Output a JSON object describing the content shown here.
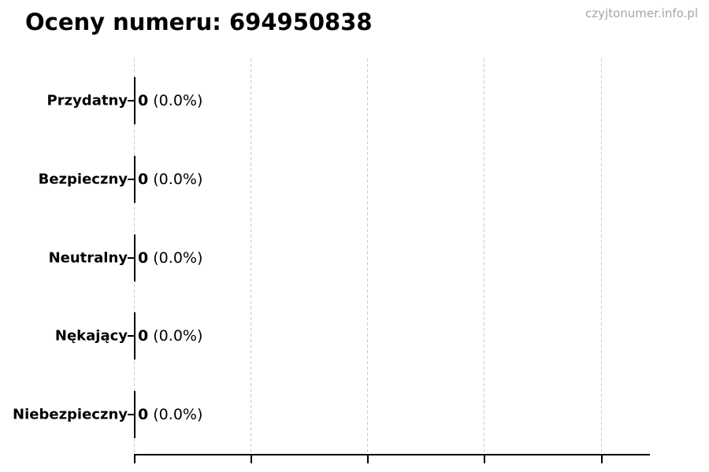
{
  "chart": {
    "title": "Oceny numeru: 694950838",
    "watermark": "czyjtonumer.info.pl"
  },
  "chart_data": {
    "type": "bar",
    "orientation": "horizontal",
    "title": "Oceny numeru: 694950838",
    "categories": [
      "Przydatny",
      "Bezpieczny",
      "Neutralny",
      "Nękający",
      "Niebezpieczny"
    ],
    "values": [
      0,
      0,
      0,
      0,
      0
    ],
    "percentages": [
      0.0,
      0.0,
      0.0,
      0.0,
      0.0
    ],
    "count_labels": [
      "0",
      "0",
      "0",
      "0",
      "0"
    ],
    "percent_labels": [
      "(0.0%)",
      "(0.0%)",
      "(0.0%)",
      "(0.0%)",
      "(0.0%)"
    ],
    "bar_annotations": [
      "0 (0.0%)",
      "0 (0.0%)",
      "0 (0.0%)",
      "0 (0.0%)",
      "0 (0.0%)"
    ],
    "xlabel": "",
    "ylabel": "",
    "x_tick_count": 5,
    "x_tick_labels_visible": false,
    "grid": {
      "axis": "x",
      "style": "dashed",
      "color": "#c9c9c9"
    },
    "legend": "none",
    "colors": {
      "background": "#ffffff",
      "text": "#000000",
      "axis": "#000000",
      "bar_edge": "#000000",
      "gridline": "#c9c9c9",
      "watermark": "#a6a6a6"
    }
  }
}
